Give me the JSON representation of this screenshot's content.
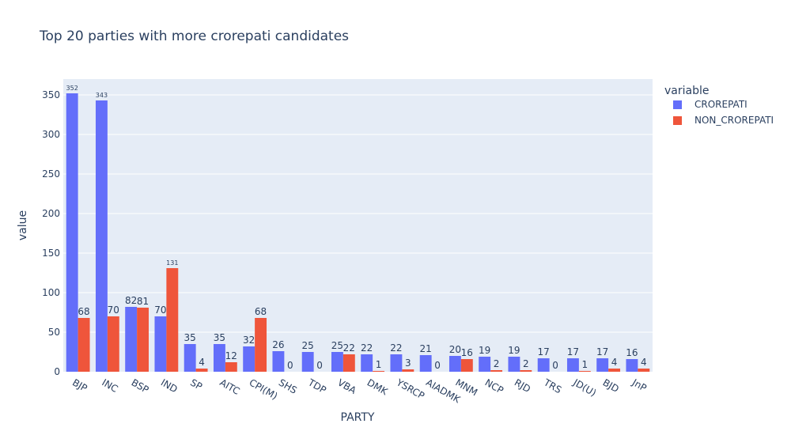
{
  "chart_data": {
    "type": "bar",
    "title": "Top 20 parties with more crorepati candidates",
    "xlabel": "PARTY",
    "ylabel": "value",
    "legend_title": "variable",
    "legend_position": "top-right",
    "grid": true,
    "ylim": [
      0,
      370
    ],
    "yticks": [
      0,
      50,
      100,
      150,
      200,
      250,
      300,
      350
    ],
    "categories": [
      "BJP",
      "INC",
      "BSP",
      "IND",
      "SP",
      "AITC",
      "CPI(M)",
      "SHS",
      "TDP",
      "VBA",
      "DMK",
      "YSRCP",
      "AIADMK",
      "MNM",
      "NCP",
      "RJD",
      "TRS",
      "JD(U)",
      "BJD",
      "JnP"
    ],
    "series": [
      {
        "name": "CROREPATI",
        "color": "#636efa",
        "values": [
          352,
          343,
          82,
          70,
          35,
          35,
          32,
          26,
          25,
          25,
          22,
          22,
          21,
          20,
          19,
          19,
          17,
          17,
          17,
          16
        ]
      },
      {
        "name": "NON_CROREPATI",
        "color": "#ef553b",
        "values": [
          68,
          70,
          81,
          131,
          4,
          12,
          68,
          0,
          0,
          22,
          1,
          3,
          0,
          16,
          2,
          2,
          0,
          1,
          4,
          4
        ]
      }
    ]
  }
}
